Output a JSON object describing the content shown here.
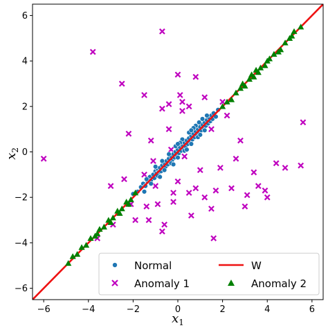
{
  "chart_data": {
    "type": "scatter",
    "title": "",
    "xlabel": "x",
    "xlabel_sub": "1",
    "ylabel": "x",
    "ylabel_sub": "2",
    "xlim": [
      -6.5,
      6.5
    ],
    "ylim": [
      -6.5,
      6.5
    ],
    "xticks": [
      -6,
      -4,
      -2,
      0,
      2,
      4,
      6
    ],
    "yticks": [
      -6,
      -4,
      -2,
      0,
      2,
      4,
      6
    ],
    "grid": false,
    "legend_position": "bottom-right",
    "line": {
      "name": "W",
      "color": "#ee1111",
      "points": [
        [
          -6.5,
          -6.5
        ],
        [
          6.5,
          6.5
        ]
      ]
    },
    "series": [
      {
        "name": "Normal",
        "marker": "circle",
        "color": "#1f77b4",
        "points": [
          [
            -1.8,
            -1.75
          ],
          [
            -1.65,
            -1.55
          ],
          [
            -1.55,
            -1.4
          ],
          [
            -1.45,
            -1.5
          ],
          [
            -1.35,
            -1.3
          ],
          [
            -1.25,
            -1.1
          ],
          [
            -1.2,
            -1.25
          ],
          [
            -1.1,
            -1.0
          ],
          [
            -1.05,
            -1.15
          ],
          [
            -1.0,
            -0.85
          ],
          [
            -0.95,
            -0.95
          ],
          [
            -0.9,
            -0.75
          ],
          [
            -0.85,
            -0.9
          ],
          [
            -0.8,
            -0.7
          ],
          [
            -0.75,
            -0.85
          ],
          [
            -0.7,
            -0.6
          ],
          [
            -0.65,
            -0.75
          ],
          [
            -0.6,
            -0.5
          ],
          [
            -0.55,
            -0.65
          ],
          [
            -0.5,
            -0.4
          ],
          [
            -0.45,
            -0.55
          ],
          [
            -0.4,
            -0.3
          ],
          [
            -0.35,
            -0.45
          ],
          [
            -0.3,
            -0.2
          ],
          [
            -0.25,
            -0.35
          ],
          [
            -0.2,
            -0.1
          ],
          [
            -0.15,
            -0.25
          ],
          [
            -0.1,
            0.0
          ],
          [
            -0.05,
            -0.15
          ],
          [
            0.0,
            0.1
          ],
          [
            0.05,
            -0.05
          ],
          [
            0.1,
            0.2
          ],
          [
            0.15,
            0.05
          ],
          [
            0.2,
            0.3
          ],
          [
            0.25,
            0.15
          ],
          [
            0.3,
            0.4
          ],
          [
            0.35,
            0.25
          ],
          [
            0.4,
            0.5
          ],
          [
            0.45,
            0.35
          ],
          [
            0.5,
            0.6
          ],
          [
            0.55,
            0.45
          ],
          [
            0.6,
            0.7
          ],
          [
            0.65,
            0.55
          ],
          [
            0.7,
            0.8
          ],
          [
            0.75,
            0.65
          ],
          [
            0.8,
            0.9
          ],
          [
            0.85,
            0.75
          ],
          [
            0.9,
            1.0
          ],
          [
            0.95,
            0.85
          ],
          [
            1.0,
            1.1
          ],
          [
            1.05,
            0.95
          ],
          [
            1.1,
            1.2
          ],
          [
            1.15,
            1.05
          ],
          [
            1.2,
            1.3
          ],
          [
            1.25,
            1.15
          ],
          [
            1.3,
            1.4
          ],
          [
            1.35,
            1.25
          ],
          [
            1.4,
            1.5
          ],
          [
            1.45,
            1.35
          ],
          [
            1.5,
            1.6
          ],
          [
            1.55,
            1.45
          ],
          [
            1.6,
            1.7
          ],
          [
            1.7,
            1.55
          ],
          [
            1.8,
            1.85
          ],
          [
            -1.2,
            -1.4
          ],
          [
            -0.9,
            -1.05
          ],
          [
            -0.6,
            -0.8
          ],
          [
            -0.3,
            -0.5
          ],
          [
            0.0,
            -0.25
          ],
          [
            0.3,
            0.05
          ],
          [
            0.6,
            0.35
          ],
          [
            0.9,
            0.65
          ],
          [
            1.2,
            0.95
          ],
          [
            -0.7,
            -0.4
          ],
          [
            -0.4,
            -0.1
          ],
          [
            -0.1,
            0.25
          ],
          [
            0.2,
            0.55
          ],
          [
            0.5,
            0.85
          ],
          [
            0.8,
            1.15
          ],
          [
            1.1,
            1.45
          ],
          [
            -1.4,
            -1.2
          ],
          [
            -1.0,
            -0.65
          ],
          [
            0.4,
            0.1
          ],
          [
            0.7,
            1.05
          ],
          [
            1.0,
            0.75
          ],
          [
            -0.2,
            -0.55
          ],
          [
            0.1,
            0.4
          ],
          [
            1.3,
            1.6
          ],
          [
            -2.0,
            -1.85
          ],
          [
            -1.5,
            -1.75
          ],
          [
            0.6,
            0.95
          ],
          [
            0.95,
            1.3
          ],
          [
            -0.8,
            -1.1
          ],
          [
            0.0,
            0.35
          ]
        ]
      },
      {
        "name": "Anomaly 1",
        "marker": "x",
        "color": "#bf00bf",
        "points": [
          [
            -6.0,
            -0.3
          ],
          [
            -3.8,
            4.4
          ],
          [
            -3.6,
            -3.8
          ],
          [
            -3.0,
            -1.5
          ],
          [
            -2.9,
            -3.2
          ],
          [
            -2.5,
            3.0
          ],
          [
            -2.4,
            -1.2
          ],
          [
            -2.2,
            0.8
          ],
          [
            -2.1,
            -2.3
          ],
          [
            -1.9,
            -3.0
          ],
          [
            -1.5,
            2.5
          ],
          [
            -1.5,
            -1.0
          ],
          [
            -1.4,
            -2.4
          ],
          [
            -1.3,
            -3.0
          ],
          [
            -1.2,
            0.5
          ],
          [
            -1.1,
            -0.4
          ],
          [
            -1.0,
            -1.5
          ],
          [
            -0.9,
            -2.3
          ],
          [
            -0.7,
            5.3
          ],
          [
            -0.7,
            1.9
          ],
          [
            -0.7,
            -3.5
          ],
          [
            -0.6,
            -3.2
          ],
          [
            -0.4,
            2.1
          ],
          [
            -0.4,
            1.0
          ],
          [
            -0.3,
            0.1
          ],
          [
            -0.2,
            -1.8
          ],
          [
            -0.2,
            -2.2
          ],
          [
            0.0,
            3.4
          ],
          [
            0.0,
            -1.3
          ],
          [
            0.1,
            2.5
          ],
          [
            0.2,
            2.2
          ],
          [
            0.2,
            1.8
          ],
          [
            0.3,
            -0.2
          ],
          [
            0.5,
            2.0
          ],
          [
            0.5,
            -1.8
          ],
          [
            0.6,
            -2.8
          ],
          [
            0.8,
            3.3
          ],
          [
            0.8,
            -1.6
          ],
          [
            1.0,
            -0.8
          ],
          [
            1.2,
            2.4
          ],
          [
            1.2,
            -2.0
          ],
          [
            1.5,
            1.0
          ],
          [
            1.5,
            -2.5
          ],
          [
            1.6,
            -3.8
          ],
          [
            1.7,
            -1.7
          ],
          [
            1.9,
            -0.7
          ],
          [
            2.0,
            2.2
          ],
          [
            2.2,
            1.6
          ],
          [
            2.4,
            -1.6
          ],
          [
            2.6,
            -0.3
          ],
          [
            2.8,
            0.5
          ],
          [
            3.0,
            -2.4
          ],
          [
            3.1,
            -1.9
          ],
          [
            3.4,
            -0.9
          ],
          [
            3.6,
            -1.5
          ],
          [
            3.9,
            -1.7
          ],
          [
            4.0,
            -2.0
          ],
          [
            4.4,
            -0.5
          ],
          [
            4.8,
            -0.7
          ],
          [
            5.6,
            1.3
          ],
          [
            5.5,
            -0.6
          ]
        ]
      },
      {
        "name": "Anomaly 2",
        "marker": "triangle",
        "color": "#008000",
        "points": [
          [
            -4.9,
            -4.9
          ],
          [
            -4.7,
            -4.6
          ],
          [
            -4.5,
            -4.5
          ],
          [
            -4.3,
            -4.2
          ],
          [
            -4.1,
            -4.1
          ],
          [
            -3.9,
            -3.8
          ],
          [
            -3.7,
            -3.7
          ],
          [
            -3.5,
            -3.4
          ],
          [
            -3.3,
            -3.3
          ],
          [
            -3.1,
            -3.0
          ],
          [
            -2.9,
            -2.9
          ],
          [
            -2.7,
            -2.6
          ],
          [
            -2.5,
            -2.5
          ],
          [
            -2.3,
            -2.2
          ],
          [
            -2.1,
            -2.1
          ],
          [
            -1.9,
            -1.8
          ],
          [
            -3.6,
            -3.6
          ],
          [
            -3.0,
            -3.1
          ],
          [
            -2.6,
            -2.7
          ],
          [
            -2.2,
            -2.3
          ],
          [
            2.0,
            2.0
          ],
          [
            2.2,
            2.2
          ],
          [
            2.4,
            2.3
          ],
          [
            2.6,
            2.6
          ],
          [
            2.8,
            2.8
          ],
          [
            3.0,
            2.9
          ],
          [
            3.2,
            3.2
          ],
          [
            3.4,
            3.3
          ],
          [
            3.5,
            3.6
          ],
          [
            3.7,
            3.7
          ],
          [
            3.9,
            3.8
          ],
          [
            4.1,
            4.1
          ],
          [
            4.3,
            4.3
          ],
          [
            4.5,
            4.4
          ],
          [
            4.8,
            4.8
          ],
          [
            5.0,
            5.0
          ],
          [
            5.2,
            5.3
          ],
          [
            5.5,
            5.5
          ],
          [
            3.6,
            3.5
          ],
          [
            3.3,
            3.4
          ],
          [
            2.9,
            3.0
          ],
          [
            4.0,
            4.0
          ],
          [
            4.6,
            4.5
          ],
          [
            5.1,
            5.1
          ]
        ]
      }
    ]
  }
}
